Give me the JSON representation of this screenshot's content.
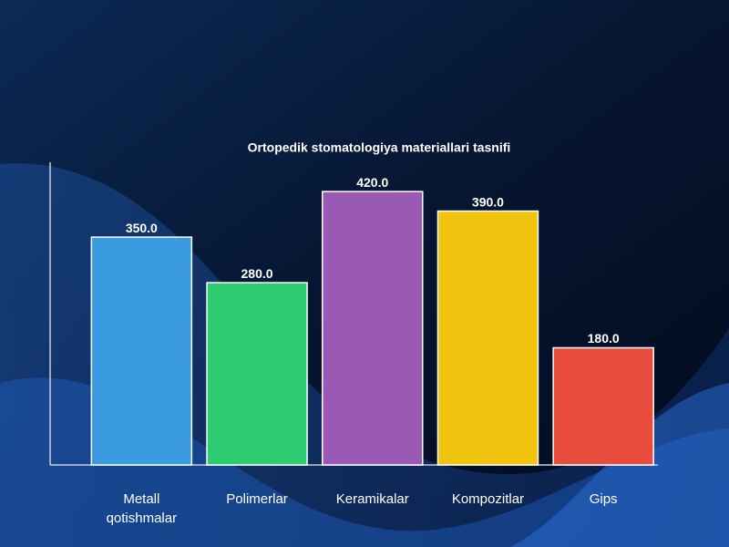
{
  "chart_data": {
    "type": "bar",
    "title": "Ortopedik stomatologiya materiallari tasnifi",
    "categories": [
      "Metall qotishmalar",
      "Polimerlar",
      "Keramikalar",
      "Kompozitlar",
      "Gips"
    ],
    "values": [
      350,
      280,
      420,
      390,
      180
    ],
    "value_labels": [
      "350.0",
      "280.0",
      "420.0",
      "390.0",
      "180.0"
    ],
    "colors": [
      "#3a9be0",
      "#2ecc71",
      "#9b59b6",
      "#f1c40f",
      "#e74c3c"
    ],
    "ylim": [
      0,
      465
    ]
  }
}
